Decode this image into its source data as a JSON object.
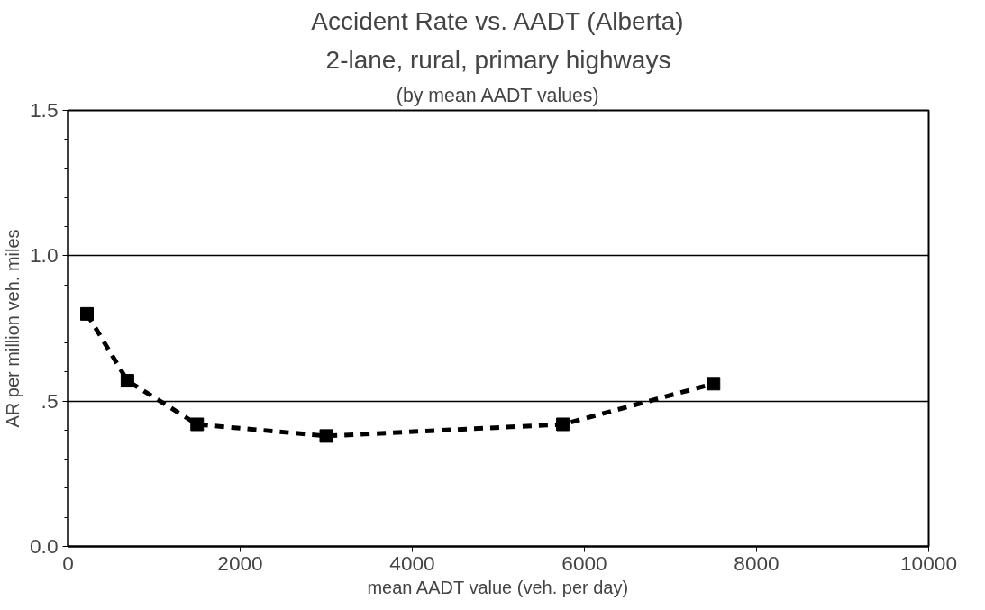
{
  "chart_data": {
    "type": "line",
    "title": "Accident Rate vs. AADT (Alberta)",
    "subtitle": "2-lane, rural, primary highways",
    "annotations": [
      "(by mean AADT values)"
    ],
    "xlabel": "mean AADT value (veh. per day)",
    "ylabel": "AR per million veh. miles",
    "x": [
      220,
      690,
      1500,
      3000,
      5750,
      7500
    ],
    "series": [
      {
        "color": "#000000",
        "values": [
          0.8,
          0.57,
          0.42,
          0.38,
          0.42,
          0.56
        ]
      }
    ],
    "xlim": [
      0,
      10000
    ],
    "xticks": [
      0,
      2000,
      4000,
      6000,
      8000,
      10000
    ],
    "ylim": [
      0,
      1.5
    ],
    "yticks": [
      {
        "value": 0,
        "label": "0.0"
      },
      {
        "value": 0.5,
        "label": ".5"
      },
      {
        "value": 1.0,
        "label": "1.0"
      },
      {
        "value": 1.5,
        "label": "1.5"
      }
    ],
    "grid": "y",
    "marker": "square",
    "line_style": "dashed"
  }
}
